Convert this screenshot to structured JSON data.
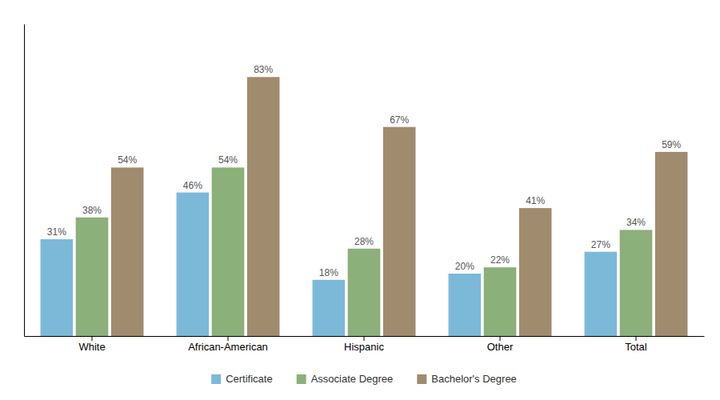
{
  "chart_data": {
    "type": "bar",
    "categories": [
      "White",
      "African-American",
      "Hispanic",
      "Other",
      "Total"
    ],
    "series": [
      {
        "name": "Certificate",
        "color": "#7CB9D8",
        "values": [
          31,
          46,
          18,
          20,
          27
        ],
        "value_labels": [
          "31%",
          "46%",
          "18%",
          "20%",
          "27%"
        ]
      },
      {
        "name": "Associate Degree",
        "color": "#8BB07A",
        "values": [
          38,
          54,
          28,
          22,
          34
        ],
        "value_labels": [
          "38%",
          "54%",
          "28%",
          "22%",
          "34%"
        ]
      },
      {
        "name": "Bachelor's Degree",
        "color": "#A08B6E",
        "values": [
          54,
          83,
          67,
          41,
          59
        ],
        "value_labels": [
          "54%",
          "83%",
          "67%",
          "41%",
          "59%"
        ]
      }
    ],
    "ylim": [
      0,
      100
    ],
    "data_labels": true,
    "tick_labels": "x",
    "legend": "bottom"
  }
}
